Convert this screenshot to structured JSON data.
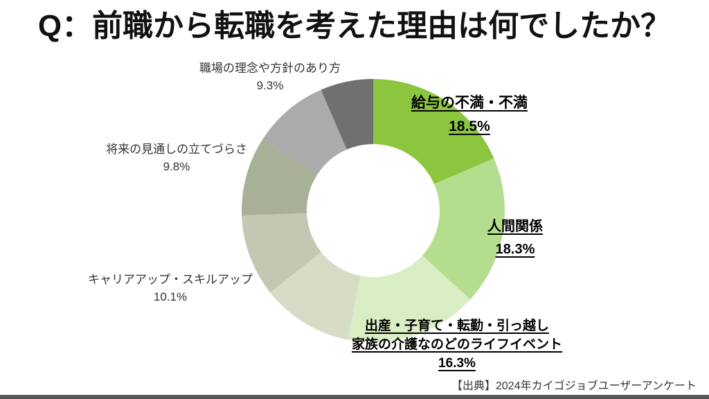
{
  "slide": {
    "title": "Q：前職から転職を考えた理由は何でしたか？",
    "source": "【出典】2024年カイゴジョブユーザーアンケート",
    "background_color": "#ffffff",
    "bottom_bar_color": "#595959",
    "accent_color": "#8CC63E"
  },
  "chart_data": {
    "type": "pie",
    "subtype": "donut",
    "start_angle": "top",
    "direction": "clockwise",
    "inner_radius_ratio": 0.505,
    "hole_color": "#ffffff",
    "legend": "none",
    "segments": [
      {
        "label": "給与の不満・不満",
        "value": 18.5,
        "color": "#8CC63E",
        "labeled": true,
        "label_style": "bold-underline"
      },
      {
        "label": "人間関係",
        "value": 18.3,
        "color": "#B5DD8E",
        "labeled": true,
        "label_style": "bold-underline"
      },
      {
        "label": "出産・子育て・転勤・引っ越し家族の介護なのどのライフイベント",
        "value": 16.3,
        "color": "#D9EEC4",
        "labeled": true,
        "label_style": "bold-underline"
      },
      {
        "label": "",
        "value": 11.2,
        "color": "#D6DCC6",
        "labeled": false,
        "label_style": "none"
      },
      {
        "label": "キャリアアップ・スキルアップ",
        "value": 10.1,
        "color": "#C2C8B1",
        "labeled": true,
        "label_style": "plain"
      },
      {
        "label": "将来の見通しの立てづらさ",
        "value": 9.8,
        "color": "#A8B098",
        "labeled": true,
        "label_style": "plain"
      },
      {
        "label": "職場の理念や方針のあり方",
        "value": 9.3,
        "color": "#ABABAB",
        "labeled": true,
        "label_style": "plain"
      },
      {
        "label": "",
        "value": 6.5,
        "color": "#707070",
        "labeled": false,
        "label_style": "none"
      }
    ]
  },
  "callouts": {
    "salary": {
      "line1": "給与の不満・不満",
      "pct": "18.5%"
    },
    "relationships": {
      "line1": "人間関係",
      "pct": "18.3%"
    },
    "life_events": {
      "line1": "出産・子育て・転勤・引っ越し",
      "line2": "家族の介護なのどのライフイベント",
      "pct": "16.3%"
    },
    "career": {
      "line1": "キャリアアップ・スキルアップ",
      "pct": "10.1%"
    },
    "future": {
      "line1": "将来の見通しの立てづらさ",
      "pct": "9.8%"
    },
    "philosophy": {
      "line1": "職場の理念や方針のあり方",
      "pct": "9.3%"
    }
  }
}
